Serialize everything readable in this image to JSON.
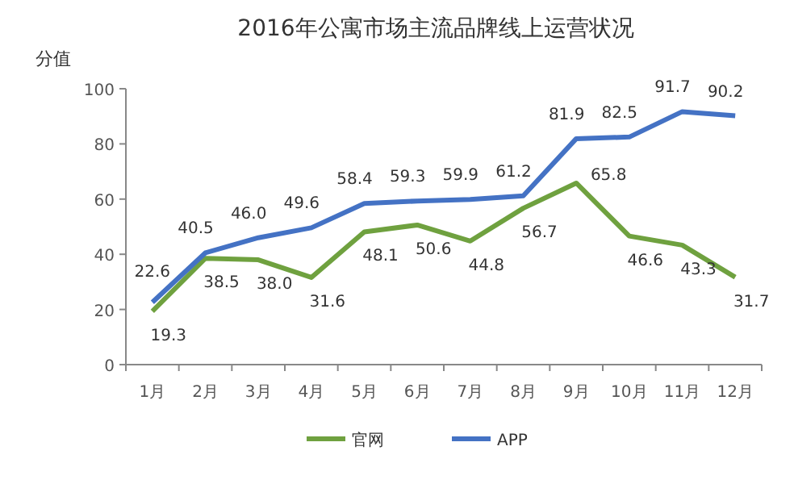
{
  "chart_data": {
    "type": "line",
    "title": "2016年公寓市场主流品牌线上运营状况",
    "ylabel": "分值",
    "categories": [
      "1月",
      "2月",
      "3月",
      "4月",
      "5月",
      "6月",
      "7月",
      "8月",
      "9月",
      "10月",
      "11月",
      "12月"
    ],
    "series": [
      {
        "name": "官网",
        "color": "#6fa13f",
        "values": [
          19.3,
          38.5,
          38.0,
          31.6,
          48.1,
          50.6,
          44.8,
          56.7,
          65.8,
          46.6,
          43.3,
          31.7
        ],
        "value_labels": [
          "19.3",
          "38.5",
          "38.0",
          "31.6",
          "48.1",
          "50.6",
          "44.8",
          "56.7",
          "65.8",
          "46.6",
          "43.3",
          "31.7"
        ]
      },
      {
        "name": "APP",
        "color": "#4472c4",
        "values": [
          22.6,
          40.5,
          46.0,
          49.6,
          58.4,
          59.3,
          59.9,
          61.2,
          81.9,
          82.5,
          91.7,
          90.2
        ],
        "value_labels": [
          "22.6",
          "40.5",
          "46.0",
          "49.6",
          "58.4",
          "59.3",
          "59.9",
          "61.2",
          "81.9",
          "82.5",
          "91.7",
          "90.2"
        ]
      }
    ],
    "ylim": [
      0,
      100
    ],
    "yticks": [
      0,
      20,
      40,
      60,
      80,
      100
    ],
    "legend": "bottom",
    "grid": false,
    "marker": "none",
    "line_style": "solid"
  }
}
